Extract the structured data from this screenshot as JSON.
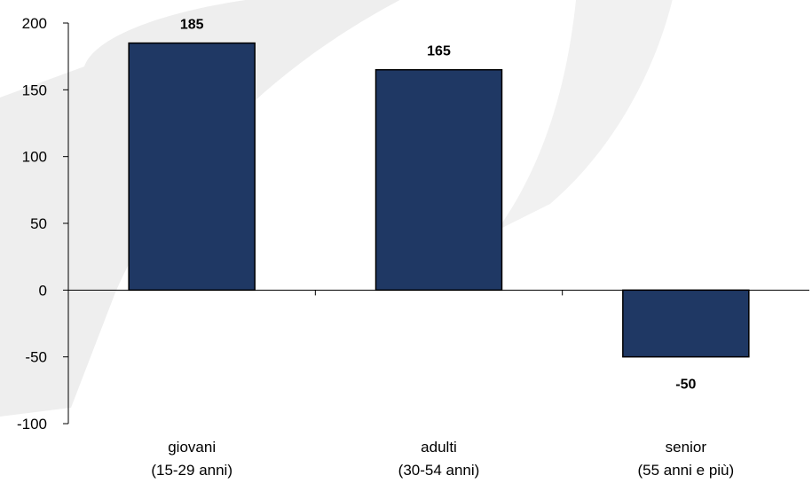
{
  "chart_data": {
    "type": "bar",
    "categories": [
      [
        "giovani",
        "(15-29 anni)"
      ],
      [
        "adulti",
        "(30-54 anni)"
      ],
      [
        "senior",
        "(55 anni e più)"
      ]
    ],
    "values": [
      185,
      165,
      -50
    ],
    "data_labels": [
      "185",
      "165",
      "-50"
    ],
    "title": "",
    "xlabel": "",
    "ylabel": "",
    "ylim": [
      -100,
      200
    ],
    "yticks": [
      "-100",
      "-50",
      "0",
      "50",
      "100",
      "150",
      "200"
    ],
    "grid": false,
    "legend": "none",
    "bar_color": "#1f3864"
  }
}
